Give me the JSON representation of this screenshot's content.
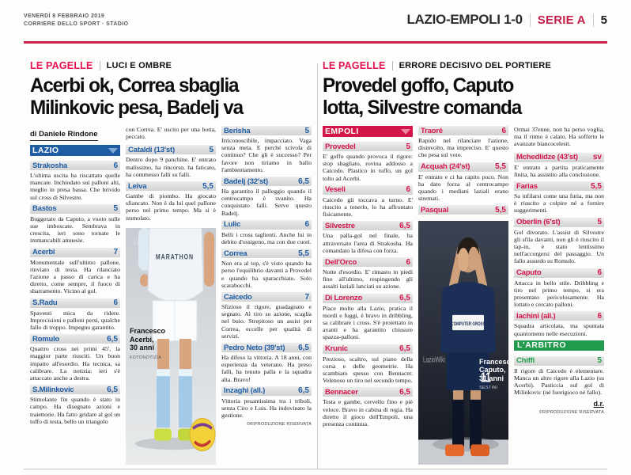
{
  "masthead": {
    "date": "VENERDÌ 8 FEBBRAIO 2019",
    "paper": "CORRIERE DELLO SPORT · STADIO",
    "match": "LAZIO-EMPOLI 1-0",
    "league": "SERIE A",
    "page_number": "5"
  },
  "colors": {
    "accent_red": "#cb2347",
    "lazio_blue": "#1e5da4",
    "empoli_red": "#d41549",
    "referee_green": "#229a4d"
  },
  "lazio": {
    "kicker": "LE PAGELLE",
    "topic": "LUCI E OMBRE",
    "headline1": "Acerbi ok, Correa sbaglia",
    "headline2": "Milinkovic pesa, Badelj va",
    "byline": "di Daniele Rindone",
    "team": "LAZIO",
    "entries_col1": [
      {
        "name": "Strakosha",
        "rating": "6",
        "text": "L'ultima uscita ha riscattato quelle mancate. Inchiodato sui palloni alti, meglio in presa bassa. Che brivido sul cross di Silvestre."
      },
      {
        "name": "Bastos",
        "rating": "5",
        "text": "Buggerato da Caputo, a vuoto sulle sue imboscate. Sembrava in crescita, ieri sono tornate le immancabili amnesie."
      },
      {
        "name": "Acerbi",
        "rating": "7",
        "text": "Monumentale sull'ultimo pallone, rinviato di testa. Ha rilanciato l'azione a passo di carica e ha diretto, come sempre, il fuoco di sbarramento. Vicino al gol."
      },
      {
        "name": "S.Radu",
        "rating": "6",
        "text": "Spaventi mica da ridere. Imprecisioni e palloni persi, qualche fallo di troppo. Impegno garantito."
      },
      {
        "name": "Romulo",
        "rating": "6,5",
        "text": "Quattro cross nei primi 45', la maggior parte riusciti. Un buon impatto all'esordio. Ha tecnica, sa calibrare. La notizia: ieri s'è attaccato anche a destra."
      },
      {
        "name": "S.Milinkovic",
        "rating": "6,5",
        "text": "Stimolante fin quando è stato in campo. Ha disegnato azioni e traiettorie. Ha fatto gridare al gol un tuffo di testa, bello un triangolo"
      }
    ],
    "carryover": "con Correa. E' uscito per una botta, peccato.",
    "entries_col2": [
      {
        "name": "Cataldi (13'st)",
        "rating": "5",
        "text": "Dentro dopo 9 panchine. E' entrato malissimo, ha rincorso, ha faticato, ha commesso falli su falli."
      },
      {
        "name": "Leiva",
        "rating": "5,5",
        "text": "Gambe di piombo. Ha giocato sfiancato. Non è da lui quel pallone perso nel primo tempo. Ma si è immolato."
      }
    ],
    "photo": {
      "line1": "Francesco",
      "line2": "Acerbi,",
      "line3": "30 anni",
      "credit": "FOTONOTIZIA",
      "watermark": "LAZIOWIKI",
      "jersey_text": "MARATHON"
    },
    "entries_col3": [
      {
        "name": "Berisha",
        "rating": "5",
        "text": "Irriconoscibile, impacciato. Vaga senza meta. E perché scivola di continuo? Che gli è successo? Per favore non tiriamo in ballo l'ambientamento."
      },
      {
        "name": "Badelj (32'st)",
        "rating": "6,5",
        "text": "Ha garantito il palleggio quando il centrocampo è svanito. Ha conquistato falli. Serve questo Badelj."
      },
      {
        "name": "Lulic",
        "rating": "6",
        "text": "Belli i cross taglienti. Anche lui in debito d'ossigeno, ma con due cuori."
      },
      {
        "name": "Correa",
        "rating": "5,5",
        "text": "Non era al top, s'è visto quando ha perso l'equilibrio davanti a Provedel e quando ha sparacchiato. Solo scarabocchi."
      },
      {
        "name": "Caicedo",
        "rating": "7",
        "text": "Sfizioso il rigore, guadagnato e segnato. Al tiro su azione, scaglia nel buio. Strepitoso un assist per Correa, eccelle per qualità di servizi."
      },
      {
        "name": "Pedro Neto (39'st)",
        "rating": "6,5",
        "text": "Ha difeso la vittoria. A 18 anni, con esperienza da veterano. Ha preso falli, ha tenuto palla e la squadra alta. Bravo!"
      },
      {
        "name": "Inzaghi (all.)",
        "rating": "6,5",
        "text": "Vittoria pesantissima tra i triboli, senza Ciro e Luis. Ha indovinato la gestione."
      }
    ],
    "copyright": "©RIPRODUZIONE RISERVATA"
  },
  "empoli": {
    "kicker": "LE PAGELLE",
    "topic": "ERRORE DECISIVO DEL PORTIERE",
    "headline1": "Provedel goffo, Caputo",
    "headline2": "lotta, Silvestre comanda",
    "team": "EMPOLI",
    "entries_col1": [
      {
        "name": "Provedel",
        "rating": "5",
        "text": "E' goffo quando provoca il rigore: stop sbagliato, rovina addosso a Caicedo. Plastico in tuffo, un gol tolto ad Acerbi."
      },
      {
        "name": "Veseli",
        "rating": "6",
        "text": "Caicedo gli toccava a turno. E' riuscito a tenerlo, lo ha affrontato fisicamente."
      },
      {
        "name": "Silvestre",
        "rating": "6,5",
        "text": "Una palla-gol nel finale, ha attraversato l'area di Strakosha. Ha comandato la difesa con forza."
      },
      {
        "name": "Dell'Orco",
        "rating": "6",
        "text": "Notte d'esordio. E' rimasto in piedi fino all'ultimo, respingendo gli assalti laziali lanciati su azione."
      },
      {
        "name": "Di Lorenzo",
        "rating": "6,5",
        "text": "Piace molto alla Lazio, pratica il mordi e fuggi, è bravo in dribbling, sa calibrare i cross. S'è proiettato in avanti e ha garantito chiusure spazza-palloni."
      },
      {
        "name": "Krunic",
        "rating": "6,5",
        "text": "Prezioso, scaltro, sul piano della corsa e delle geometrie. Ha scambiato spesso con Bennacer. Velenoso un tiro nel secondo tempo."
      },
      {
        "name": "Bennacer",
        "rating": "6,5",
        "text": "Testa e gambe, cervello fino e piè veloce. Bravo in cabina di regia. Ha diretto il gioco dell'Empoli, una presenza continua."
      }
    ],
    "entries_col2": [
      {
        "name": "Traoré",
        "rating": "6",
        "text": "Rapido nel rilanciare l'azione, disinvolto, ma impreciso. E' questo che pesa sul voto."
      },
      {
        "name": "Acquah (24'st)",
        "rating": "5,5",
        "text": "E' entrato e ci ha capito poco. Non ha dato forza al centrocampo quando i mediani laziali erano stremati."
      },
      {
        "name": "Pasqual",
        "rating": "5,5",
        "text": ""
      }
    ],
    "photo": {
      "line1": "Francesco",
      "line2": "Caputo,",
      "line3": "31 anni",
      "credit": "SESTINI",
      "watermark": "LazioWiki",
      "jersey_text": "COMPUTER GROSS",
      "shirt_number": "11"
    },
    "carryover": "Ormai 37enne, non ha perso voglia, ma il ritmo è calato. Ha sofferto le avanzate biancocelesti.",
    "entries_col3": [
      {
        "name": "Mchedlidze (43'st)",
        "rating": "sv",
        "text": "E' entrato a partita praticamente finita, ha assistito alla conclusione."
      },
      {
        "name": "Farias",
        "rating": "5,5",
        "text": "Sa infilarsi come una furia, ma non è riuscito a colpire né a fornire suggerimenti."
      },
      {
        "name": "Oberlin (6'st)",
        "rating": "5",
        "text": "Gol divorato. L'assist di Silvestre gli sfila davanti, non gli è riuscito il tap-in, è stato lentissimo nell'accorgersi del passaggio. Un fallo assurdo su Romulo."
      },
      {
        "name": "Caputo",
        "rating": "6",
        "text": "Attacca in bello stile. Dribbling e tiro nel primo tempo, si era presentato pericolosamente. Ha lottato e cercato palloni."
      },
      {
        "name": "Iachini (all.)",
        "rating": "6",
        "text": "Squadra articolata, ma spuntata quantomeno nelle esecuzioni."
      }
    ],
    "referee": {
      "header": "L'ARBITRO",
      "name": "Chiffi",
      "rating": "5",
      "text": "Il rigore di Caicedo è elementare. Manca un altro rigore alla Lazio (su Acerbi). Pasticcia sul gol di Milinkovic (né fuorigioco né fallo)."
    },
    "signature": "d.r.",
    "copyright": "©RIPRODUZIONE RISERVATA"
  }
}
